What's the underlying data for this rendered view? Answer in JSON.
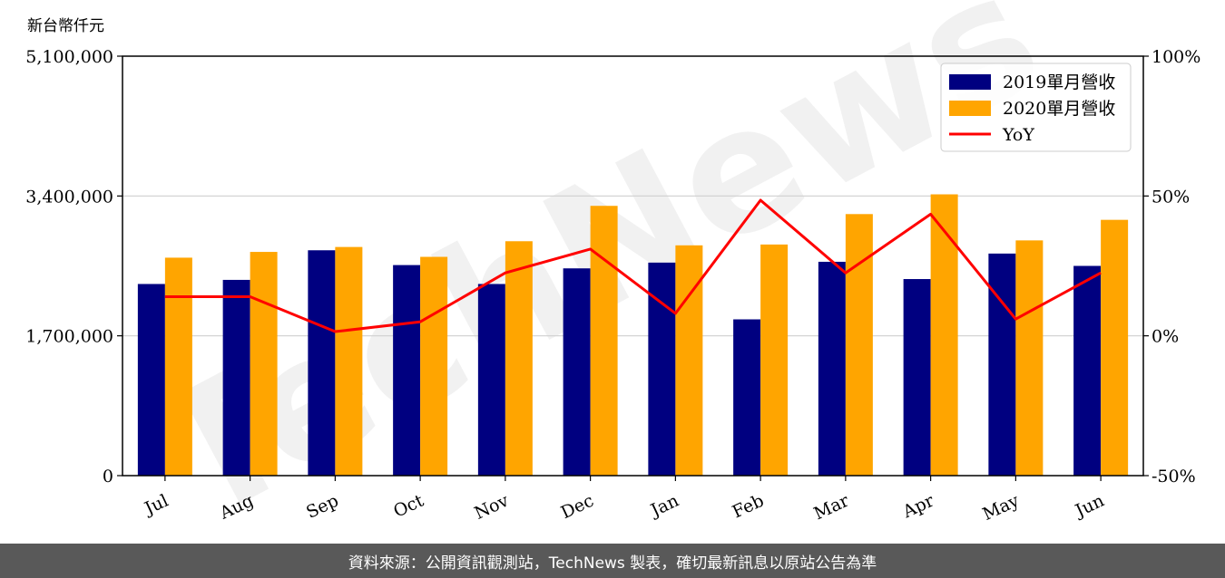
{
  "chart_data": {
    "type": "bar",
    "y_unit_label": "新台幣仟元",
    "categories": [
      "Jul",
      "Aug",
      "Sep",
      "Oct",
      "Nov",
      "Dec",
      "Jan",
      "Feb",
      "Mar",
      "Apr",
      "May",
      "Jun"
    ],
    "series": [
      {
        "name": "2019單月營收",
        "type": "bar",
        "color": "#000080",
        "values": [
          2330000,
          2380000,
          2740000,
          2560000,
          2330000,
          2520000,
          2590000,
          1900000,
          2600000,
          2390000,
          2700000,
          2550000
        ]
      },
      {
        "name": "2020單月營收",
        "type": "bar",
        "color": "#ffa500",
        "values": [
          2650000,
          2720000,
          2780000,
          2660000,
          2850000,
          3280000,
          2800000,
          2810000,
          3180000,
          3420000,
          2860000,
          3110000
        ]
      },
      {
        "name": "YoY",
        "type": "line",
        "color": "#ff0000",
        "axis": "right",
        "values": [
          14,
          14,
          1.5,
          5,
          22.5,
          31,
          8,
          48.5,
          22.5,
          43.5,
          6,
          22.5
        ]
      }
    ],
    "ylim": [
      0,
      5100000
    ],
    "yticks": [
      "0",
      "1,700,000",
      "3,400,000",
      "5,100,000"
    ],
    "ytick_values": [
      0,
      1700000,
      3400000,
      5100000
    ],
    "y2lim": [
      -50,
      100
    ],
    "y2ticks": [
      "-50%",
      "0%",
      "50%",
      "100%"
    ],
    "y2tick_values": [
      -50,
      0,
      50,
      100
    ],
    "grid": "horizontal",
    "legend_position": "top-right",
    "watermark": "TechNews"
  },
  "footer": {
    "text": "資料來源：公開資訊觀測站，TechNews 製表，確切最新訊息以原站公告為準"
  }
}
